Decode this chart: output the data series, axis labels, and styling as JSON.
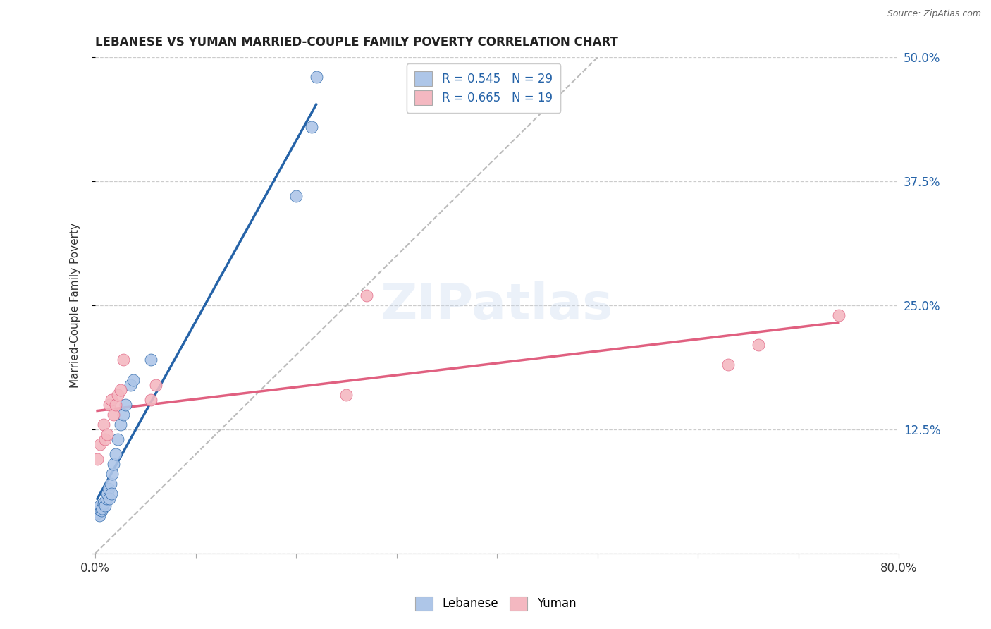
{
  "title": "LEBANESE VS YUMAN MARRIED-COUPLE FAMILY POVERTY CORRELATION CHART",
  "source": "Source: ZipAtlas.com",
  "ylabel": "Married-Couple Family Poverty",
  "xlim": [
    0.0,
    0.8
  ],
  "ylim": [
    0.0,
    0.5
  ],
  "xticks": [
    0.0,
    0.1,
    0.2,
    0.3,
    0.4,
    0.5,
    0.6,
    0.7,
    0.8
  ],
  "xticklabels": [
    "0.0%",
    "",
    "",
    "",
    "",
    "",
    "",
    "",
    "80.0%"
  ],
  "ytick_positions": [
    0.0,
    0.125,
    0.25,
    0.375,
    0.5
  ],
  "yticklabels": [
    "",
    "12.5%",
    "25.0%",
    "37.5%",
    "50.0%"
  ],
  "R_lebanese": 0.545,
  "N_lebanese": 29,
  "R_yuman": 0.665,
  "N_yuman": 19,
  "lebanese_color": "#aec6e8",
  "yuman_color": "#f4b8c1",
  "lebanese_line_color": "#2563a8",
  "yuman_line_color": "#e06080",
  "diagonal_color": "#bbbbbb",
  "background_color": "#ffffff",
  "grid_color": "#cccccc",
  "lebanese_x": [
    0.002,
    0.003,
    0.004,
    0.005,
    0.005,
    0.006,
    0.007,
    0.008,
    0.009,
    0.01,
    0.011,
    0.012,
    0.013,
    0.014,
    0.015,
    0.016,
    0.017,
    0.018,
    0.02,
    0.022,
    0.025,
    0.028,
    0.03,
    0.035,
    0.038,
    0.055,
    0.2,
    0.215,
    0.22
  ],
  "lebanese_y": [
    0.04,
    0.042,
    0.038,
    0.044,
    0.048,
    0.043,
    0.045,
    0.05,
    0.052,
    0.048,
    0.055,
    0.06,
    0.065,
    0.055,
    0.07,
    0.06,
    0.08,
    0.09,
    0.1,
    0.115,
    0.13,
    0.14,
    0.15,
    0.17,
    0.175,
    0.195,
    0.36,
    0.43,
    0.48
  ],
  "yuman_x": [
    0.002,
    0.005,
    0.008,
    0.01,
    0.012,
    0.014,
    0.016,
    0.018,
    0.02,
    0.022,
    0.025,
    0.028,
    0.055,
    0.06,
    0.25,
    0.27,
    0.63,
    0.66,
    0.74
  ],
  "yuman_y": [
    0.095,
    0.11,
    0.13,
    0.115,
    0.12,
    0.15,
    0.155,
    0.14,
    0.15,
    0.16,
    0.165,
    0.195,
    0.155,
    0.17,
    0.16,
    0.26,
    0.19,
    0.21,
    0.24
  ]
}
